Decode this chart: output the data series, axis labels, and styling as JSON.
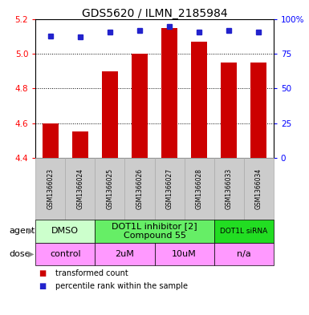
{
  "title": "GDS5620 / ILMN_2185984",
  "samples": [
    "GSM1366023",
    "GSM1366024",
    "GSM1366025",
    "GSM1366026",
    "GSM1366027",
    "GSM1366028",
    "GSM1366033",
    "GSM1366034"
  ],
  "bar_values": [
    4.6,
    4.55,
    4.9,
    5.0,
    5.15,
    5.07,
    4.95,
    4.95
  ],
  "dot_values": [
    88,
    87,
    91,
    92,
    95,
    91,
    92,
    91
  ],
  "bar_bottom": 4.4,
  "ylim_left": [
    4.4,
    5.2
  ],
  "ylim_right": [
    0,
    100
  ],
  "yticks_left": [
    4.4,
    4.6,
    4.8,
    5.0,
    5.2
  ],
  "yticks_right": [
    0,
    25,
    50,
    75,
    100
  ],
  "ytick_right_labels": [
    "0",
    "25",
    "50",
    "75",
    "100%"
  ],
  "grid_lines": [
    4.6,
    4.8,
    5.0
  ],
  "bar_color": "#cc0000",
  "dot_color": "#2222cc",
  "agent_groups": [
    {
      "label": "DMSO",
      "start": 0,
      "end": 2,
      "color": "#ccffcc",
      "fontsize": 8
    },
    {
      "label": "DOT1L inhibitor [2]\nCompound 55",
      "start": 2,
      "end": 6,
      "color": "#66ee66",
      "fontsize": 8
    },
    {
      "label": "DOT1L siRNA",
      "start": 6,
      "end": 8,
      "color": "#22dd22",
      "fontsize": 6.5
    }
  ],
  "dose_groups": [
    {
      "label": "control",
      "start": 0,
      "end": 2,
      "color": "#ff99ff"
    },
    {
      "label": "2uM",
      "start": 2,
      "end": 4,
      "color": "#ff99ff"
    },
    {
      "label": "10uM",
      "start": 4,
      "end": 6,
      "color": "#ff99ff"
    },
    {
      "label": "n/a",
      "start": 6,
      "end": 8,
      "color": "#ff99ff"
    }
  ],
  "bar_width": 0.55,
  "sample_bg_color": "#cccccc",
  "sample_border_color": "#aaaaaa",
  "agent_label": "agent",
  "dose_label": "dose",
  "legend_red": "transformed count",
  "legend_blue": "percentile rank within the sample"
}
